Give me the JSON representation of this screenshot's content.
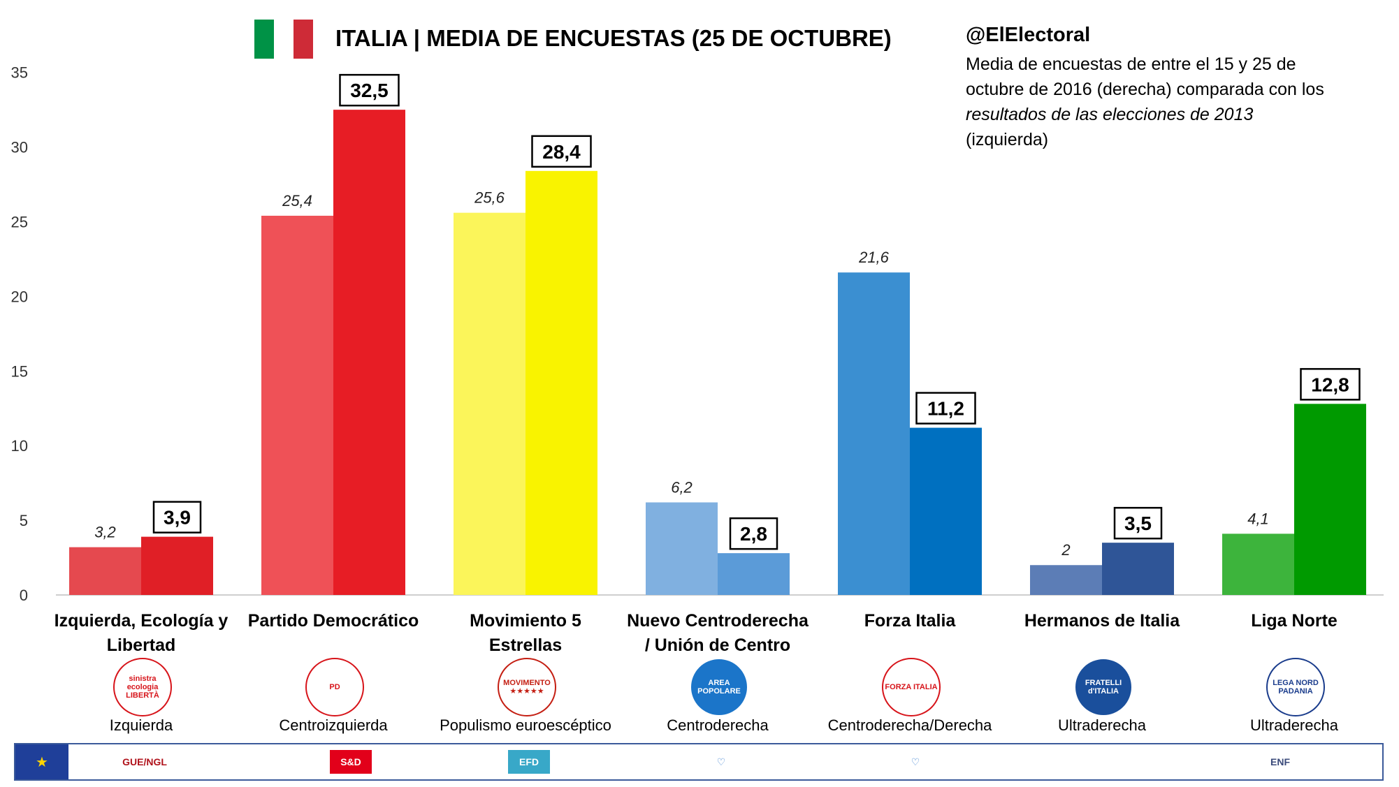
{
  "header": {
    "title": "ITALIA | MEDIA DE ENCUESTAS (25 DE OCTUBRE)",
    "handle": "@ElElectoral",
    "note_part1": "Media de encuestas de entre el 15 y 25 de octubre de 2016 (derecha) comparada con los ",
    "note_italic1": "resultados de las elecciones de 2013",
    "note_part2": " (izquierda)",
    "flag_colors": [
      "#009246",
      "#ffffff",
      "#ce2b37"
    ]
  },
  "chart_data": {
    "type": "bar",
    "ylim": [
      0,
      35
    ],
    "yticks": [
      "0",
      "5",
      "10",
      "15",
      "20",
      "25",
      "30",
      "35"
    ],
    "grid": false,
    "categories": [
      "Izquierda, Ecología y Libertad",
      "Partido Democrático",
      "Movimiento 5 Estrellas",
      "Nuevo Centroderecha / Unión de Centro",
      "Forza Italia",
      "Hermanos de Italia",
      "Liga Norte"
    ],
    "series": [
      {
        "values": [
          3.2,
          25.4,
          25.6,
          6.2,
          21.6,
          2,
          4.1
        ],
        "labels": [
          "3,2",
          "25,4",
          "25,6",
          "6,2",
          "21,6",
          "2",
          "4,1"
        ],
        "colors": [
          "#e5494f",
          "#ef5157",
          "#fbf55a",
          "#80b0e0",
          "#3b8fd1",
          "#5c7db6",
          "#3db43c"
        ]
      },
      {
        "values": [
          3.9,
          32.5,
          28.4,
          2.8,
          11.2,
          3.5,
          12.8
        ],
        "labels": [
          "3,9",
          "32,5",
          "28,4",
          "2,8",
          "11,2",
          "3,5",
          "12,8"
        ],
        "colors": [
          "#e01f26",
          "#e71d25",
          "#f9f300",
          "#5b9bd8",
          "#0070c0",
          "#2f5597",
          "#009a00"
        ]
      }
    ]
  },
  "parties": [
    {
      "line1": "Izquierda, Ecología y",
      "line2": "Libertad",
      "ideology": "Izquierda",
      "logo_text": "sinistra ecologia LIBERTÀ",
      "logo_bg": "#ffffff",
      "logo_fg": "#d7141a"
    },
    {
      "line1": "Partido Democrático",
      "line2": "",
      "ideology": "Centroizquierda",
      "logo_text": "PD",
      "logo_bg": "#ffffff",
      "logo_fg": "#d7141a"
    },
    {
      "line1": "Movimiento 5",
      "line2": "Estrellas",
      "ideology": "Populismo euroescéptico",
      "logo_text": "MOVIMENTO ★★★★★",
      "logo_bg": "#ffffff",
      "logo_fg": "#c41e12"
    },
    {
      "line1": "Nuevo Centroderecha",
      "line2": "/ Unión de Centro",
      "ideology": "Centroderecha",
      "logo_text": "AREA POPOLARE",
      "logo_bg": "#1b75c9",
      "logo_fg": "#ffffff"
    },
    {
      "line1": "Forza Italia",
      "line2": "",
      "ideology": "Centroderecha/Derecha",
      "logo_text": "FORZA ITALIA",
      "logo_bg": "#ffffff",
      "logo_fg": "#d7141a"
    },
    {
      "line1": "Hermanos de Italia",
      "line2": "",
      "ideology": "Ultraderecha",
      "logo_text": "FRATELLI d'ITALIA",
      "logo_bg": "#1a4f9c",
      "logo_fg": "#ffffff"
    },
    {
      "line1": "Liga Norte",
      "line2": "",
      "ideology": "Ultraderecha",
      "logo_text": "LEGA NORD PADANIA",
      "logo_bg": "#ffffff",
      "logo_fg": "#1a3c8c"
    }
  ],
  "eu_groups": [
    {
      "text": "GUE/NGL",
      "color": "#b0121b"
    },
    {
      "text": "S&D",
      "color": "#ffffff",
      "bg": "#e2001a"
    },
    {
      "text": "EFD",
      "color": "#ffffff",
      "bg": "#38a8c8"
    },
    {
      "text": "♡",
      "color": "#3a7fd0"
    },
    {
      "text": "♡",
      "color": "#3a7fd0"
    },
    {
      "text": "ENF",
      "color": "#3a4a7a"
    }
  ]
}
